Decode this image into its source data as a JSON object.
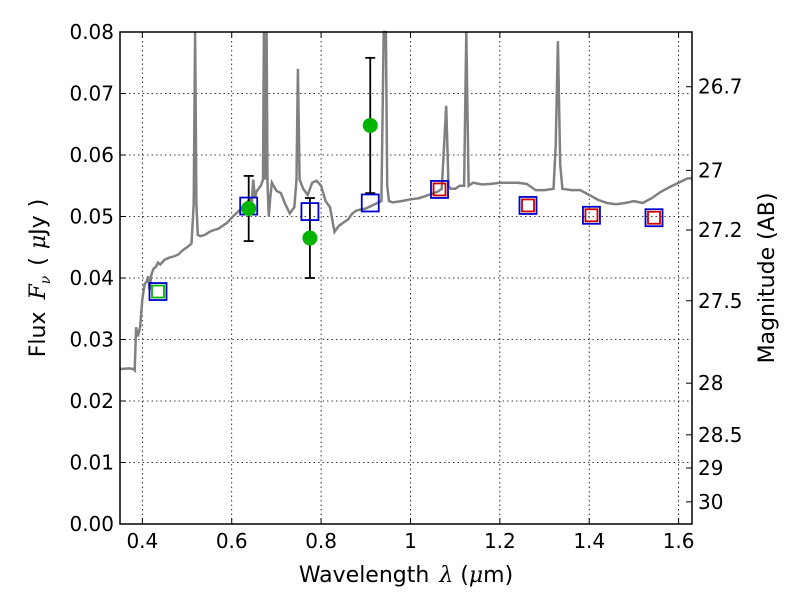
{
  "chart_data": {
    "type": "line",
    "xlabel": {
      "text": "Wavelength",
      "symbol": "λ",
      "unit_open": " (",
      "unit_mu": "μ",
      "unit_rest": "m)"
    },
    "ylabel": {
      "text": "Flux",
      "symbol": "F",
      "sub": "ν",
      "unit_open": "(",
      "unit_mu": "μ",
      "unit_rest": "Jy",
      "unit_close": ")"
    },
    "y2label": "Magnitude (AB)",
    "xlim": [
      0.35,
      1.63
    ],
    "ylim": [
      0.0,
      0.08
    ],
    "grid": true,
    "x_ticks": [
      {
        "value": 0.4,
        "label": "0.4"
      },
      {
        "value": 0.6,
        "label": "0.6"
      },
      {
        "value": 0.8,
        "label": "0.8"
      },
      {
        "value": 1.0,
        "label": "1"
      },
      {
        "value": 1.2,
        "label": "1.2"
      },
      {
        "value": 1.4,
        "label": "1.4"
      },
      {
        "value": 1.6,
        "label": "1.6"
      }
    ],
    "y_ticks": [
      {
        "value": 0.0,
        "label": "0.00"
      },
      {
        "value": 0.01,
        "label": "0.01"
      },
      {
        "value": 0.02,
        "label": "0.02"
      },
      {
        "value": 0.03,
        "label": "0.03"
      },
      {
        "value": 0.04,
        "label": "0.04"
      },
      {
        "value": 0.05,
        "label": "0.05"
      },
      {
        "value": 0.06,
        "label": "0.06"
      },
      {
        "value": 0.07,
        "label": "0.07"
      },
      {
        "value": 0.08,
        "label": "0.08"
      }
    ],
    "y2_ticks": [
      {
        "flux": 0.0711,
        "label": "26.7"
      },
      {
        "flux": 0.0575,
        "label": "27"
      },
      {
        "flux": 0.0478,
        "label": "27.2"
      },
      {
        "flux": 0.0363,
        "label": "27.5"
      },
      {
        "flux": 0.0229,
        "label": "28"
      },
      {
        "flux": 0.0145,
        "label": "28.5"
      },
      {
        "flux": 0.0091,
        "label": "29"
      },
      {
        "flux": 0.0036,
        "label": "30"
      }
    ],
    "model_spectrum": {
      "color": "#808080",
      "x": [
        0.35,
        0.37,
        0.38,
        0.383,
        0.386,
        0.39,
        0.395,
        0.4,
        0.405,
        0.41,
        0.413,
        0.416,
        0.42,
        0.425,
        0.43,
        0.435,
        0.44,
        0.45,
        0.46,
        0.47,
        0.48,
        0.49,
        0.5,
        0.51,
        0.515,
        0.518,
        0.521,
        0.524,
        0.53,
        0.54,
        0.55,
        0.56,
        0.57,
        0.58,
        0.59,
        0.6,
        0.61,
        0.62,
        0.63,
        0.64,
        0.645,
        0.648,
        0.652,
        0.655,
        0.66,
        0.665,
        0.67,
        0.672,
        0.675,
        0.678,
        0.68,
        0.683,
        0.686,
        0.69,
        0.7,
        0.71,
        0.72,
        0.73,
        0.74,
        0.745,
        0.748,
        0.752,
        0.76,
        0.77,
        0.78,
        0.79,
        0.8,
        0.81,
        0.82,
        0.83,
        0.84,
        0.85,
        0.86,
        0.87,
        0.88,
        0.9,
        0.92,
        0.935,
        0.94,
        0.945,
        0.948,
        0.952,
        0.96,
        0.98,
        1.0,
        1.02,
        1.04,
        1.06,
        1.07,
        1.08,
        1.085,
        1.09,
        1.1,
        1.11,
        1.12,
        1.125,
        1.13,
        1.14,
        1.16,
        1.18,
        1.2,
        1.22,
        1.24,
        1.26,
        1.28,
        1.3,
        1.32,
        1.325,
        1.33,
        1.335,
        1.34,
        1.36,
        1.38,
        1.4,
        1.42,
        1.44,
        1.46,
        1.48,
        1.5,
        1.52,
        1.54,
        1.56,
        1.58,
        1.6,
        1.62,
        1.63
      ],
      "y": [
        0.0252,
        0.0253,
        0.0252,
        0.025,
        0.032,
        0.0305,
        0.032,
        0.0365,
        0.039,
        0.0395,
        0.0403,
        0.038,
        0.0405,
        0.0415,
        0.0418,
        0.0425,
        0.0422,
        0.043,
        0.0433,
        0.0435,
        0.0438,
        0.0445,
        0.045,
        0.0456,
        0.052,
        0.08,
        0.052,
        0.047,
        0.0468,
        0.047,
        0.0475,
        0.0478,
        0.048,
        0.0485,
        0.049,
        0.0498,
        0.0505,
        0.0512,
        0.052,
        0.0528,
        0.052,
        0.056,
        0.053,
        0.054,
        0.0545,
        0.055,
        0.056,
        0.08,
        0.056,
        0.08,
        0.0555,
        0.05,
        0.053,
        0.0555,
        0.0542,
        0.0538,
        0.052,
        0.0505,
        0.0515,
        0.056,
        0.074,
        0.056,
        0.0545,
        0.0535,
        0.0555,
        0.0558,
        0.055,
        0.0525,
        0.0515,
        0.0475,
        0.0485,
        0.049,
        0.0495,
        0.0505,
        0.051,
        0.0513,
        0.052,
        0.0525,
        0.08,
        0.08,
        0.055,
        0.0525,
        0.0523,
        0.0525,
        0.0528,
        0.053,
        0.0535,
        0.054,
        0.0545,
        0.068,
        0.055,
        0.0545,
        0.0545,
        0.055,
        0.055,
        0.08,
        0.055,
        0.0555,
        0.0552,
        0.0553,
        0.0555,
        0.0555,
        0.0555,
        0.0553,
        0.0543,
        0.0543,
        0.0545,
        0.0615,
        0.0785,
        0.0585,
        0.0545,
        0.0543,
        0.0543,
        0.0535,
        0.0527,
        0.0522,
        0.052,
        0.0522,
        0.0525,
        0.0522,
        0.053,
        0.054,
        0.0548,
        0.0555,
        0.0562,
        0.0562
      ]
    },
    "observed_photometry": {
      "color": "#00b400",
      "points": [
        {
          "x": 0.638,
          "y": 0.0513,
          "err": 0.0053
        },
        {
          "x": 0.775,
          "y": 0.0465,
          "err": 0.0065
        },
        {
          "x": 0.91,
          "y": 0.0648,
          "err": 0.011
        }
      ]
    },
    "model_photometry_square_blue": {
      "color": "#0000cc",
      "points": [
        {
          "x": 0.435,
          "y": 0.0378
        },
        {
          "x": 0.638,
          "y": 0.0517
        },
        {
          "x": 0.775,
          "y": 0.0508
        },
        {
          "x": 0.91,
          "y": 0.0522
        },
        {
          "x": 1.065,
          "y": 0.0544
        },
        {
          "x": 1.263,
          "y": 0.0518
        },
        {
          "x": 1.405,
          "y": 0.0502
        },
        {
          "x": 1.545,
          "y": 0.0498
        }
      ]
    },
    "model_photometry_square_inner": {
      "points": [
        {
          "x": 0.435,
          "y": 0.0378,
          "color": "#00b400"
        },
        {
          "x": 1.065,
          "y": 0.0544,
          "color": "#cc0000"
        },
        {
          "x": 1.263,
          "y": 0.0518,
          "color": "#cc0000"
        },
        {
          "x": 1.405,
          "y": 0.0502,
          "color": "#cc0000"
        },
        {
          "x": 1.545,
          "y": 0.0498,
          "color": "#cc0000"
        }
      ]
    }
  }
}
